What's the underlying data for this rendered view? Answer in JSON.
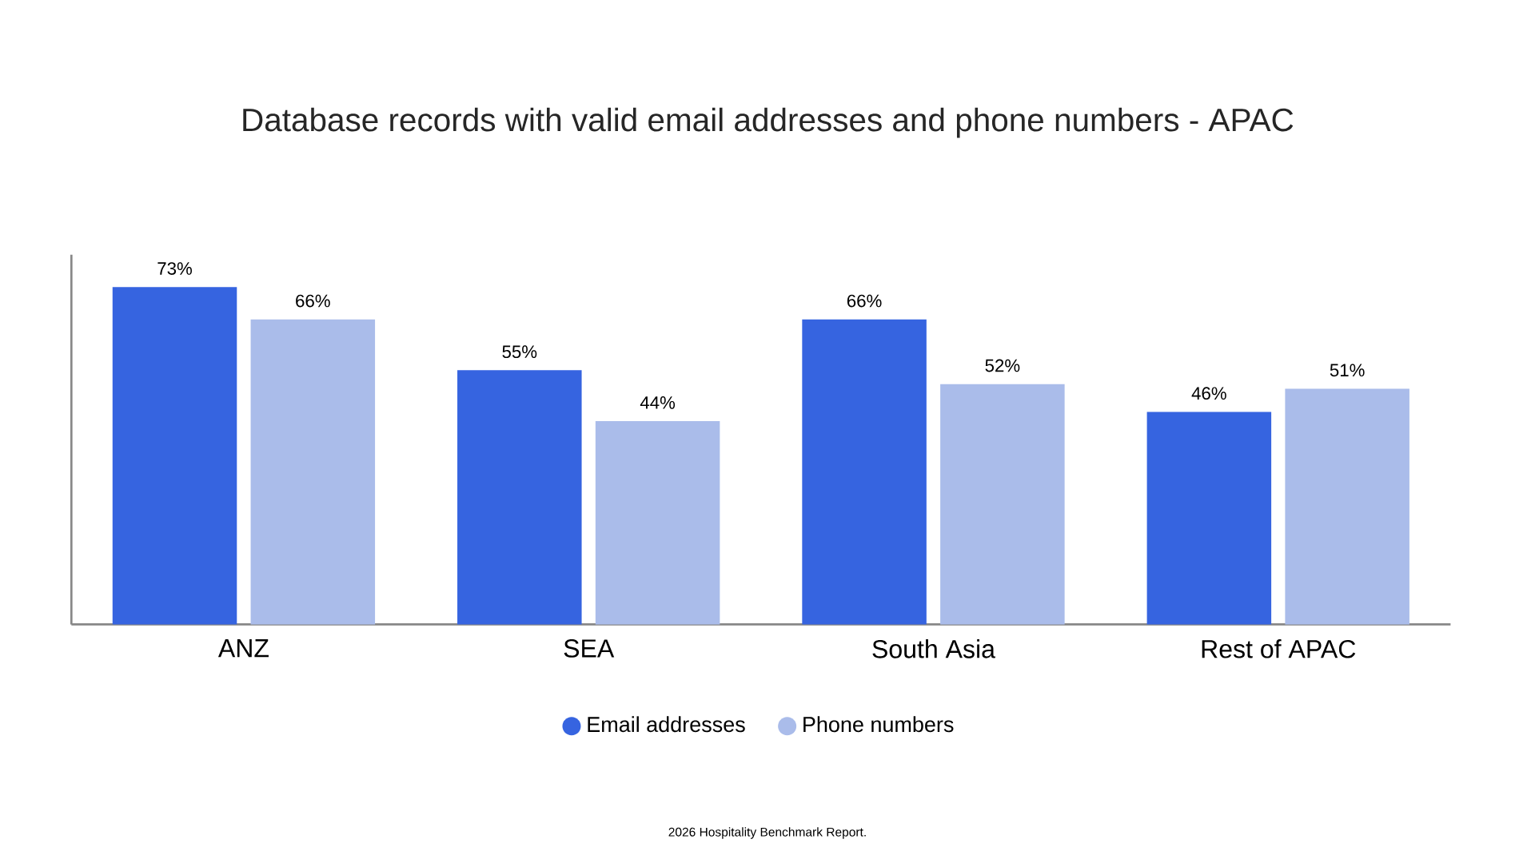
{
  "chart_data": {
    "type": "bar",
    "title": "Database records with valid email addresses and phone numbers - APAC",
    "categories": [
      "ANZ",
      "SEA",
      "South Asia",
      "Rest of APAC"
    ],
    "series": [
      {
        "name": "Email addresses",
        "color": "#3664e0",
        "values": [
          73,
          55,
          66,
          46
        ],
        "value_labels": [
          "73%",
          "55%",
          "66%",
          "46%"
        ]
      },
      {
        "name": "Phone numbers",
        "color": "#aabcea",
        "values": [
          66,
          44,
          52,
          51
        ],
        "value_labels": [
          "66%",
          "44%",
          "52%",
          "51%"
        ]
      }
    ],
    "ylim": [
      0,
      80
    ],
    "legend": "bottom",
    "marker": "circle",
    "annotations": [
      "2026 Hospitality Benchmark Report."
    ]
  }
}
